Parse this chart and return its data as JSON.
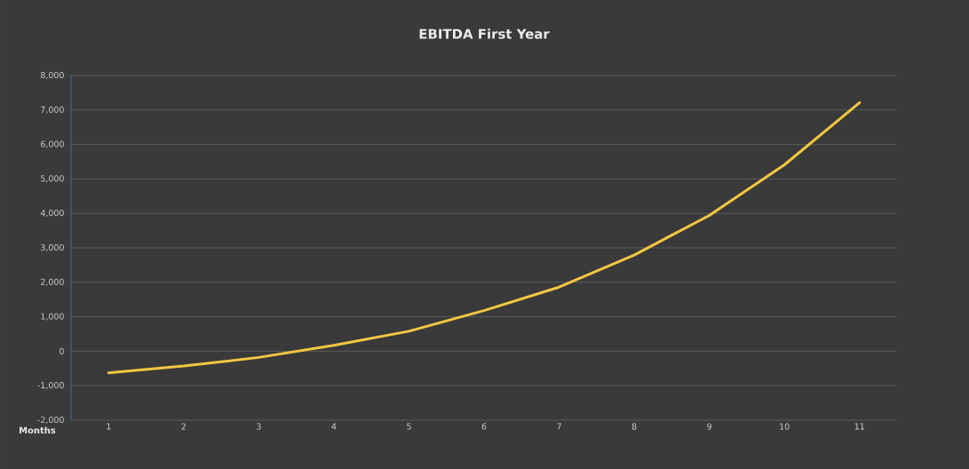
{
  "chart_data": {
    "type": "line",
    "title": "EBITDA First Year",
    "xlabel": "Months",
    "categories": [
      "1",
      "2",
      "3",
      "4",
      "5",
      "6",
      "7",
      "8",
      "9",
      "10",
      "11"
    ],
    "values": [
      -630,
      -430,
      -180,
      170,
      580,
      1180,
      1860,
      2790,
      3940,
      5410,
      7210
    ],
    "color": "#f5c842",
    "ylim": [
      -2000,
      8000
    ],
    "yticks": [
      {
        "value": -2000,
        "label": "-2,000"
      },
      {
        "value": -1000,
        "label": "-1,000"
      },
      {
        "value": 0,
        "label": "0"
      },
      {
        "value": 1000,
        "label": "1,000"
      },
      {
        "value": 2000,
        "label": "2,000"
      },
      {
        "value": 3000,
        "label": "3,000"
      },
      {
        "value": 4000,
        "label": "4,000"
      },
      {
        "value": 5000,
        "label": "5,000"
      },
      {
        "value": 6000,
        "label": "6,000"
      },
      {
        "value": 7000,
        "label": "7,000"
      },
      {
        "value": 8000,
        "label": "8,000"
      }
    ],
    "grid": "y"
  }
}
